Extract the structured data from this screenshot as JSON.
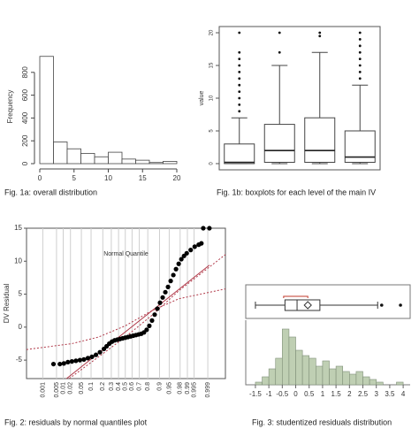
{
  "chart_data": [
    {
      "type": "histogram",
      "title": "Fig. 1a: overall distribution",
      "y_label": "Frequency",
      "bins": [
        0,
        2,
        4,
        6,
        8,
        10,
        12,
        14,
        16,
        18,
        20
      ],
      "counts": [
        940,
        190,
        130,
        90,
        60,
        100,
        40,
        30,
        10,
        20
      ],
      "xlim": [
        0,
        20
      ],
      "xticks": [
        0,
        5,
        10,
        15,
        20
      ],
      "ylim": [
        0,
        1000
      ],
      "yticks": [
        0,
        200,
        400,
        600,
        800
      ],
      "color": "#ffffff"
    },
    {
      "type": "box",
      "title": "Fig. 1b: boxplots for each level of the main IV",
      "y_label": "value",
      "ylim": [
        -0.95,
        20.95
      ],
      "yticks": [
        0,
        5,
        10,
        15,
        20
      ],
      "color": "#ffffff",
      "boxes": [
        {
          "min": 0,
          "q1": 0,
          "median": 0.2,
          "q3": 3,
          "max": 7,
          "outliers": [
            8,
            9,
            10,
            11,
            12,
            13,
            14,
            15,
            16,
            17,
            20
          ]
        },
        {
          "min": 0,
          "q1": 0.2,
          "median": 2,
          "q3": 6,
          "max": 15,
          "outliers": [
            17,
            20
          ]
        },
        {
          "min": 0,
          "q1": 0.2,
          "median": 2,
          "q3": 7,
          "max": 17,
          "outliers": [
            19.5,
            20
          ]
        },
        {
          "min": 0,
          "q1": 0.2,
          "median": 1,
          "q3": 5,
          "max": 12,
          "outliers": [
            13,
            14,
            15,
            16,
            17,
            18,
            19,
            20
          ]
        }
      ]
    },
    {
      "type": "scatter",
      "title": "Fig. 2: residuals by normal quantiles plot",
      "x_label": "Normal Quantile",
      "y_label": "DV Residual",
      "xlim": [
        -3.7,
        3.75
      ],
      "ylim": [
        -7.8,
        15
      ],
      "grid": true,
      "color": "#000000",
      "xticks": [
        {
          "value": -3.09,
          "label": "0.001"
        },
        {
          "value": -2.576,
          "label": "0.005"
        },
        {
          "value": -2.326,
          "label": "0.01"
        },
        {
          "value": -2.054,
          "label": "0.02"
        },
        {
          "value": -1.645,
          "label": "0.05"
        },
        {
          "value": -1.282,
          "label": "0.1"
        },
        {
          "value": -0.842,
          "label": "0.2"
        },
        {
          "value": -0.524,
          "label": "0.3"
        },
        {
          "value": -0.253,
          "label": "0.4"
        },
        {
          "value": 0,
          "label": "0.5"
        },
        {
          "value": 0.253,
          "label": "0.6"
        },
        {
          "value": 0.524,
          "label": "0.7"
        },
        {
          "value": 0.842,
          "label": "0.8"
        },
        {
          "value": 1.282,
          "label": "0.9"
        },
        {
          "value": 1.645,
          "label": "0.95"
        },
        {
          "value": 2.054,
          "label": "0.98"
        },
        {
          "value": 2.326,
          "label": "0.99"
        },
        {
          "value": 2.576,
          "label": "0.995"
        },
        {
          "value": 3.09,
          "label": "0.999"
        }
      ],
      "yticks": [
        -5,
        0,
        5,
        10,
        15
      ],
      "x": [
        -2.69,
        -2.45,
        -2.3,
        -2.15,
        -2.0,
        -1.85,
        -1.7,
        -1.55,
        -1.4,
        -1.25,
        -1.1,
        -0.95,
        -0.8,
        -0.7,
        -0.6,
        -0.5,
        -0.4,
        -0.3,
        -0.2,
        -0.1,
        0,
        0.1,
        0.2,
        0.3,
        0.4,
        0.5,
        0.6,
        0.7,
        0.8,
        0.9,
        1.0,
        1.1,
        1.2,
        1.3,
        1.4,
        1.5,
        1.6,
        1.7,
        1.8,
        1.9,
        2.0,
        2.1,
        2.2,
        2.3,
        2.45,
        2.6,
        2.75,
        2.85,
        2.92,
        3.15
      ],
      "y": [
        -5.6,
        -5.6,
        -5.5,
        -5.3,
        -5.2,
        -5.1,
        -5.0,
        -4.9,
        -4.7,
        -4.5,
        -4.2,
        -3.8,
        -3.3,
        -2.9,
        -2.5,
        -2.2,
        -2.0,
        -1.9,
        -1.8,
        -1.7,
        -1.6,
        -1.5,
        -1.4,
        -1.3,
        -1.2,
        -1.1,
        -1.0,
        -0.8,
        -0.4,
        0.2,
        1.0,
        1.9,
        2.8,
        3.7,
        4.5,
        5.3,
        6.1,
        7.0,
        7.9,
        8.8,
        9.6,
        10.3,
        10.8,
        11.2,
        11.7,
        12.2,
        12.5,
        12.7,
        15,
        15
      ],
      "lines": [
        {
          "color": "#b03848",
          "dash": false,
          "x": [
            -2.2,
            3.15
          ],
          "y": [
            -7.8,
            9.4
          ]
        },
        {
          "color": "#b03848",
          "dash": true,
          "x": [
            -2.1,
            -1,
            0,
            1,
            2,
            3.75
          ],
          "y": [
            -7.8,
            -4.5,
            -1.5,
            1.8,
            5.5,
            11
          ]
        },
        {
          "color": "#b03848",
          "dash": true,
          "x": [
            -3.7,
            -2,
            -1,
            0,
            1,
            2,
            3.75
          ],
          "y": [
            -3.4,
            -2.5,
            -1.5,
            0.2,
            2.5,
            4.3,
            5.8
          ]
        }
      ]
    },
    {
      "type": "histogram",
      "title": "Fig. 3: studentized residuals distribution",
      "bins": [
        -1.5,
        -1.25,
        -1,
        -0.75,
        -0.5,
        -0.25,
        0,
        0.25,
        0.5,
        0.75,
        1,
        1.25,
        1.5,
        1.75,
        2,
        2.25,
        2.5,
        2.75,
        3,
        3.25,
        3.5,
        3.75,
        4
      ],
      "counts": [
        2,
        6,
        12,
        20,
        42,
        36,
        26,
        22,
        20,
        14,
        18,
        12,
        14,
        10,
        8,
        10,
        6,
        4,
        2,
        0,
        0,
        2
      ],
      "xlim": [
        -1.86,
        4.26
      ],
      "xticks": [
        -1.5,
        -1,
        -0.5,
        0,
        0.5,
        1,
        1.5,
        2,
        2.5,
        3,
        3.5,
        4
      ],
      "ylim": [
        0,
        46
      ],
      "color": "#bfcfb3",
      "box": {
        "min": -1.5,
        "q1": -0.4,
        "median": 0.05,
        "q3": 0.9,
        "max": 3.05,
        "mean": 0.45,
        "outliers": [
          3.2,
          3.9
        ],
        "shortest_half": [
          -0.45,
          0.45
        ]
      }
    }
  ]
}
